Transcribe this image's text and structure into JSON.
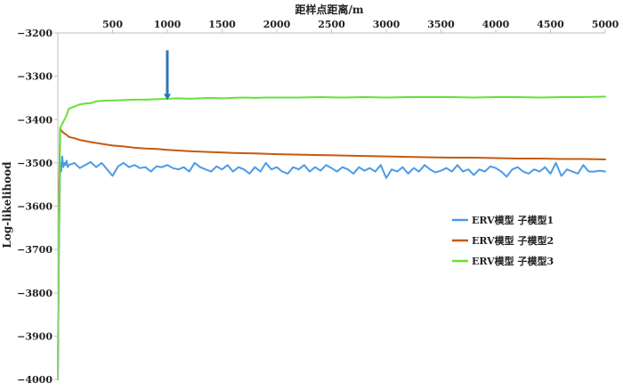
{
  "chart_data": {
    "type": "line",
    "title": "",
    "xlabel": "距样点距离/m",
    "ylabel": "Log-likelihood",
    "xlim": [
      0,
      5000
    ],
    "ylim": [
      -4000,
      -3200
    ],
    "x_ticks": [
      500,
      1000,
      1500,
      2000,
      2500,
      3000,
      3500,
      4000,
      4500,
      5000
    ],
    "x_tick_labels": [
      "500",
      "1000",
      "1500",
      "2000",
      "2500",
      "3000",
      "3500",
      "4000",
      "4500",
      "5000"
    ],
    "y_ticks": [
      -3200,
      -3300,
      -3400,
      -3500,
      -3600,
      -3700,
      -3800,
      -3900,
      -4000
    ],
    "y_tick_labels": [
      "−3200",
      "−3300",
      "−3400",
      "−3500",
      "−3600",
      "−3700",
      "−3800",
      "−3900",
      "−4000"
    ],
    "x_axis_position": "top",
    "grid": false,
    "legend_position": "right",
    "annotation": {
      "type": "arrow",
      "x": 1000,
      "y_from": -3240,
      "y_to": -3355,
      "color": "#2e75b6"
    },
    "series": [
      {
        "name": "ERV模型  子模型1",
        "color": "#4d9be6",
        "x": [
          0,
          10,
          20,
          30,
          40,
          50,
          60,
          70,
          80,
          90,
          100,
          150,
          200,
          250,
          300,
          350,
          400,
          450,
          500,
          550,
          600,
          650,
          700,
          750,
          800,
          850,
          900,
          950,
          1000,
          1050,
          1100,
          1150,
          1200,
          1250,
          1300,
          1350,
          1400,
          1450,
          1500,
          1550,
          1600,
          1650,
          1700,
          1750,
          1800,
          1850,
          1900,
          1950,
          2000,
          2050,
          2100,
          2150,
          2200,
          2250,
          2300,
          2350,
          2400,
          2450,
          2500,
          2550,
          2600,
          2650,
          2700,
          2750,
          2800,
          2850,
          2900,
          2950,
          3000,
          3050,
          3100,
          3150,
          3200,
          3250,
          3300,
          3350,
          3400,
          3450,
          3500,
          3550,
          3600,
          3650,
          3700,
          3750,
          3800,
          3850,
          3900,
          3950,
          4000,
          4050,
          4100,
          4150,
          4200,
          4250,
          4300,
          4350,
          4400,
          4450,
          4500,
          4550,
          4600,
          4650,
          4700,
          4750,
          4800,
          4850,
          4900,
          4950,
          5000
        ],
        "y": [
          -4000,
          -3700,
          -3500,
          -3520,
          -3485,
          -3510,
          -3500,
          -3505,
          -3495,
          -3510,
          -3505,
          -3500,
          -3512,
          -3505,
          -3498,
          -3510,
          -3500,
          -3515,
          -3530,
          -3508,
          -3500,
          -3510,
          -3505,
          -3512,
          -3510,
          -3520,
          -3508,
          -3510,
          -3505,
          -3512,
          -3515,
          -3510,
          -3520,
          -3500,
          -3510,
          -3515,
          -3520,
          -3508,
          -3515,
          -3505,
          -3520,
          -3510,
          -3515,
          -3525,
          -3510,
          -3520,
          -3500,
          -3515,
          -3510,
          -3520,
          -3525,
          -3510,
          -3515,
          -3505,
          -3520,
          -3510,
          -3518,
          -3505,
          -3512,
          -3520,
          -3510,
          -3515,
          -3525,
          -3510,
          -3518,
          -3512,
          -3520,
          -3505,
          -3535,
          -3515,
          -3520,
          -3510,
          -3525,
          -3512,
          -3520,
          -3505,
          -3515,
          -3522,
          -3518,
          -3512,
          -3520,
          -3505,
          -3520,
          -3515,
          -3528,
          -3515,
          -3520,
          -3508,
          -3512,
          -3520,
          -3532,
          -3515,
          -3510,
          -3520,
          -3525,
          -3515,
          -3520,
          -3510,
          -3525,
          -3500,
          -3530,
          -3515,
          -3520,
          -3525,
          -3505,
          -3520,
          -3520,
          -3518,
          -3520
        ]
      },
      {
        "name": "ERV模型  子模型2",
        "color": "#c55a11",
        "x": [
          0,
          10,
          20,
          30,
          40,
          50,
          60,
          80,
          100,
          150,
          200,
          300,
          400,
          500,
          600,
          700,
          800,
          900,
          1000,
          1200,
          1400,
          1600,
          1800,
          2000,
          2200,
          2400,
          2600,
          2800,
          3000,
          3200,
          3400,
          3600,
          3800,
          4000,
          4200,
          4400,
          4600,
          4800,
          5000
        ],
        "y": [
          -4000,
          -3600,
          -3420,
          -3425,
          -3428,
          -3430,
          -3432,
          -3435,
          -3440,
          -3443,
          -3447,
          -3452,
          -3456,
          -3460,
          -3462,
          -3465,
          -3467,
          -3468,
          -3470,
          -3473,
          -3475,
          -3477,
          -3478,
          -3480,
          -3481,
          -3482,
          -3483,
          -3484,
          -3485,
          -3486,
          -3487,
          -3488,
          -3488,
          -3489,
          -3490,
          -3490,
          -3491,
          -3491,
          -3492
        ]
      },
      {
        "name": "ERV模型  子模型3",
        "color": "#66e03c",
        "x": [
          0,
          10,
          20,
          30,
          40,
          60,
          80,
          100,
          150,
          200,
          250,
          300,
          350,
          400,
          450,
          500,
          600,
          700,
          800,
          900,
          1000,
          1100,
          1200,
          1300,
          1400,
          1500,
          1600,
          1700,
          1800,
          1900,
          2000,
          2200,
          2400,
          2600,
          2800,
          3000,
          3200,
          3400,
          3600,
          3800,
          4000,
          4200,
          4400,
          4600,
          4800,
          5000
        ],
        "y": [
          -4000,
          -3700,
          -3420,
          -3415,
          -3410,
          -3400,
          -3390,
          -3375,
          -3370,
          -3365,
          -3363,
          -3362,
          -3358,
          -3357,
          -3356,
          -3356,
          -3355,
          -3354,
          -3354,
          -3353,
          -3352,
          -3351,
          -3352,
          -3351,
          -3350,
          -3351,
          -3350,
          -3349,
          -3350,
          -3349,
          -3349,
          -3349,
          -3348,
          -3349,
          -3348,
          -3349,
          -3348,
          -3348,
          -3348,
          -3349,
          -3348,
          -3348,
          -3349,
          -3348,
          -3348,
          -3347
        ]
      }
    ]
  }
}
